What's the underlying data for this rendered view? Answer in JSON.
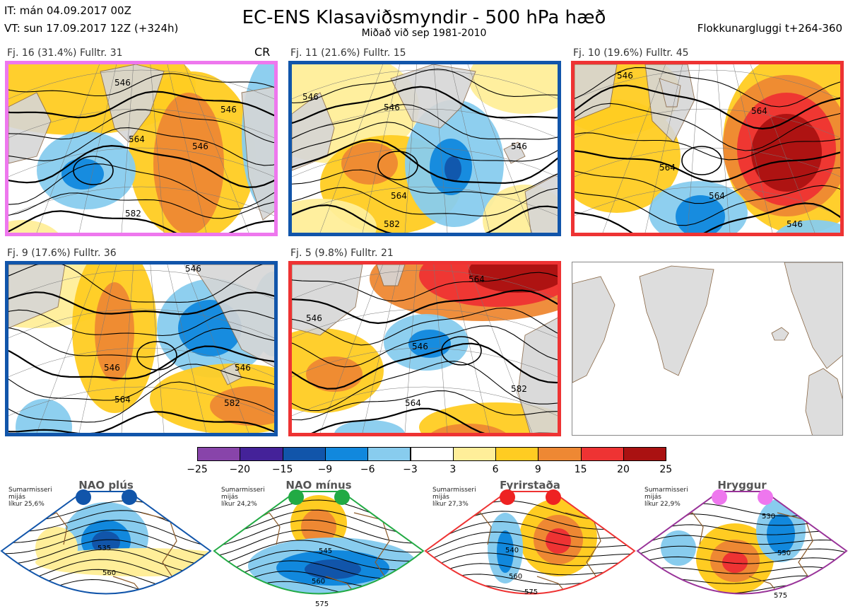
{
  "header": {
    "it": "IT: mán 04.09.2017 00Z",
    "vt": "VT: sun 17.09.2017 12Z  (+324h)",
    "title": "EC-ENS Klasaviðsmyndir - 500 hPa hæð",
    "subtitle": "Miðað við sep 1981-2010",
    "window": "Flokkunargluggi t+264-360"
  },
  "panels": [
    {
      "label": "Fj. 16 (31.4%)   Fulltr. 31",
      "extra": "CR",
      "border": "#ee77ee",
      "contours": [
        "546",
        "546",
        "564",
        "546",
        "582"
      ]
    },
    {
      "label": "Fj. 11 (21.6%)   Fulltr. 15",
      "border": "#1155aa",
      "contours": [
        "546",
        "546",
        "564",
        "546",
        "582"
      ]
    },
    {
      "label": "Fj. 10 (19.6%)   Fulltr. 45",
      "border": "#ee3333",
      "contours": [
        "546",
        "564",
        "564",
        "564",
        "546"
      ]
    },
    {
      "label": "Fj. 9 (17.6%)   Fulltr. 36",
      "border": "#1155aa",
      "contours": [
        "546",
        "546",
        "564",
        "582",
        "546"
      ]
    },
    {
      "label": "Fj. 5 (9.8%)   Fulltr. 21",
      "border": "#ee3333",
      "contours": [
        "546",
        "564",
        "546",
        "564",
        "582"
      ]
    }
  ],
  "colorbar": {
    "ticks": [
      "−25",
      "−20",
      "−15",
      "−9",
      "−6",
      "−3",
      "3",
      "6",
      "9",
      "15",
      "20",
      "25"
    ],
    "colors": [
      "#8844aa",
      "#442299",
      "#1155aa",
      "#1188dd",
      "#88ccee",
      "#ffffff",
      "#ffee99",
      "#ffcc22",
      "#ee8833",
      "#ee3333",
      "#aa1111"
    ]
  },
  "regimes": [
    {
      "name": "NAO plús",
      "info1": "Sumarmisseri",
      "info2": "mijás",
      "info3": "líkur 25,6%",
      "dot": "#1155aa",
      "border": "#1155aa",
      "contours": [
        "535",
        "560"
      ]
    },
    {
      "name": "NAO mínus",
      "info1": "Sumarmisseri",
      "info2": "mijás",
      "info3": "líkur 24,2%",
      "dot": "#22aa44",
      "border": "#22aa44",
      "contours": [
        "545",
        "560",
        "575"
      ]
    },
    {
      "name": "Fyrirstaða",
      "info1": "Sumarmisseri",
      "info2": "mijás",
      "info3": "líkur 27,3%",
      "dot": "#ee2222",
      "border": "#ee3333",
      "contours": [
        "540",
        "560",
        "575"
      ]
    },
    {
      "name": "Hryggur",
      "info1": "Sumarmisseri",
      "info2": "mijás",
      "info3": "líkur 22,9%",
      "dot": "#ee77ee",
      "border": "#993399",
      "contours": [
        "530",
        "550",
        "575"
      ]
    }
  ]
}
